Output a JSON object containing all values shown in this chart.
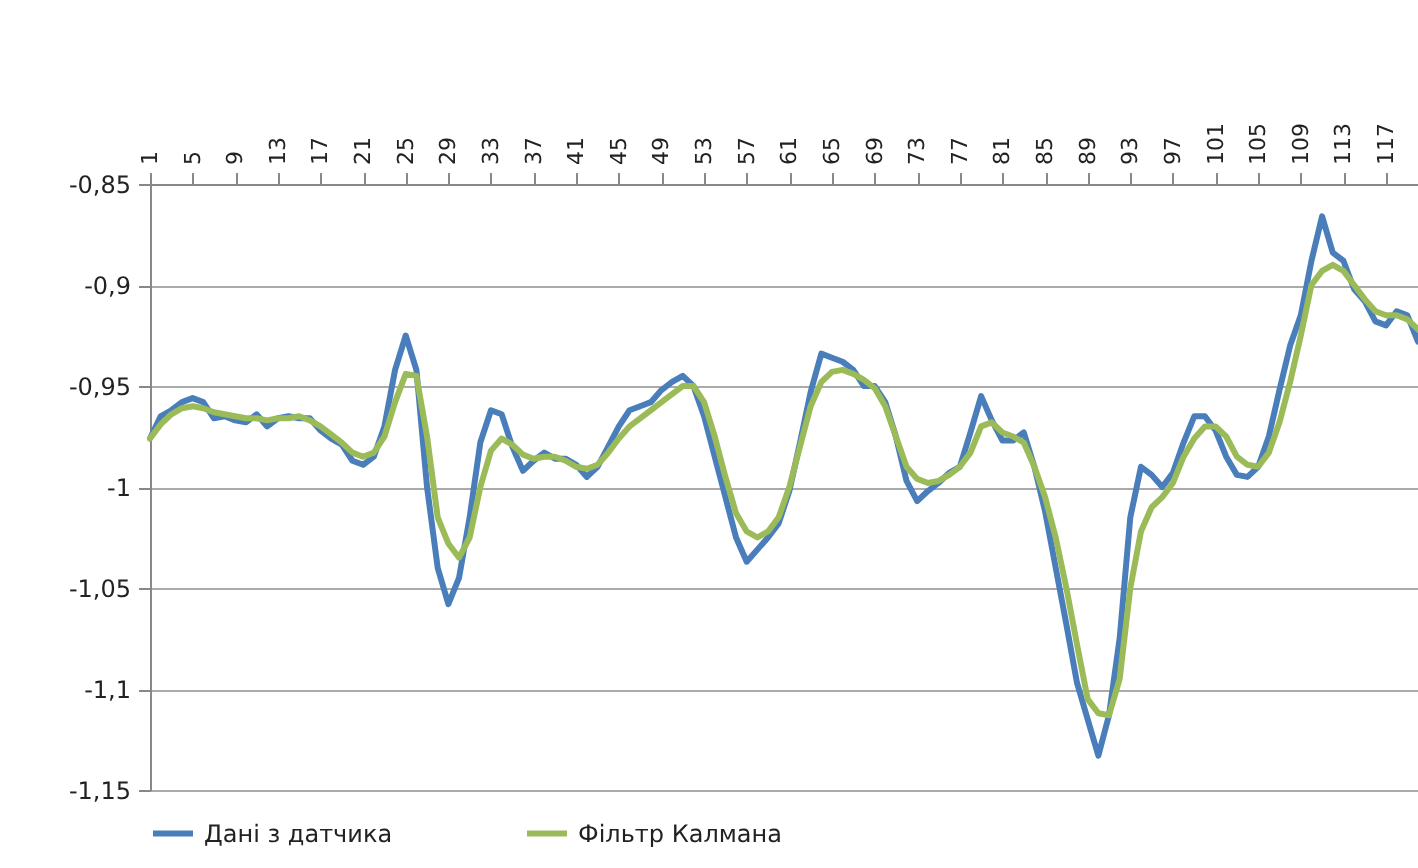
{
  "chart_data": {
    "type": "line",
    "categories": [
      "1",
      null,
      null,
      null,
      "5",
      null,
      null,
      null,
      "9",
      null,
      null,
      null,
      "13",
      null,
      null,
      null,
      "17",
      null,
      null,
      null,
      "21",
      null,
      null,
      null,
      "25",
      null,
      null,
      null,
      "29",
      null,
      null,
      null,
      "33",
      null,
      null,
      null,
      "37",
      null,
      null,
      null,
      "41",
      null,
      null,
      null,
      "45",
      null,
      null,
      null,
      "49",
      null,
      null,
      null,
      "53",
      null,
      null,
      null,
      "57",
      null,
      null,
      null,
      "61",
      null,
      null,
      null,
      "65",
      null,
      null,
      null,
      "69",
      null,
      null,
      null,
      "73",
      null,
      null,
      null,
      "77",
      null,
      null,
      null,
      "81",
      null,
      null,
      null,
      "85",
      null,
      null,
      null,
      "89",
      null,
      null,
      null,
      "93",
      null,
      null,
      null,
      "97",
      null,
      null,
      null,
      "101",
      null,
      null,
      null,
      "105",
      null,
      null,
      null,
      "109",
      null,
      null,
      null,
      "113",
      null,
      null,
      null,
      "117",
      null,
      null,
      null
    ],
    "series": [
      {
        "name": "Дані з датчика",
        "color": "#4a7ebb",
        "values": [
          -0.976,
          -0.965,
          -0.962,
          -0.958,
          -0.956,
          -0.958,
          -0.966,
          -0.965,
          -0.967,
          -0.968,
          -0.964,
          -0.97,
          -0.966,
          -0.965,
          -0.966,
          -0.966,
          -0.972,
          -0.976,
          -0.979,
          -0.987,
          -0.989,
          -0.985,
          -0.97,
          -0.942,
          -0.925,
          -0.942,
          -1.0,
          -1.04,
          -1.058,
          -1.045,
          -1.015,
          -0.978,
          -0.962,
          -0.964,
          -0.98,
          -0.992,
          -0.987,
          -0.983,
          -0.986,
          -0.986,
          -0.989,
          -0.995,
          -0.99,
          -0.98,
          -0.97,
          -0.962,
          -0.96,
          -0.958,
          -0.952,
          -0.948,
          -0.945,
          -0.95,
          -0.965,
          -0.985,
          -1.005,
          -1.025,
          -1.037,
          -1.031,
          -1.025,
          -1.018,
          -1.002,
          -0.978,
          -0.953,
          -0.934,
          -0.936,
          -0.938,
          -0.942,
          -0.95,
          -0.95,
          -0.958,
          -0.975,
          -0.997,
          -1.007,
          -1.002,
          -0.998,
          -0.993,
          -0.99,
          -0.973,
          -0.955,
          -0.967,
          -0.977,
          -0.977,
          -0.973,
          -0.99,
          -1.012,
          -1.04,
          -1.068,
          -1.097,
          -1.115,
          -1.133,
          -1.113,
          -1.075,
          -1.015,
          -0.99,
          -0.994,
          -1.0,
          -0.993,
          -0.978,
          -0.965,
          -0.965,
          -0.972,
          -0.985,
          -0.994,
          -0.995,
          -0.99,
          -0.975,
          -0.952,
          -0.93,
          -0.915,
          -0.888,
          -0.866,
          -0.884,
          -0.888,
          -0.902,
          -0.908,
          -0.918,
          -0.92,
          -0.913,
          -0.915,
          -0.928
        ]
      },
      {
        "name": "Фільтр Калмана",
        "color": "#9bbb59",
        "values": [
          -0.976,
          -0.969,
          -0.964,
          -0.961,
          -0.96,
          -0.961,
          -0.963,
          -0.964,
          -0.965,
          -0.966,
          -0.966,
          -0.967,
          -0.966,
          -0.966,
          -0.965,
          -0.967,
          -0.97,
          -0.974,
          -0.978,
          -0.983,
          -0.985,
          -0.983,
          -0.975,
          -0.958,
          -0.944,
          -0.945,
          -0.975,
          -1.015,
          -1.028,
          -1.035,
          -1.025,
          -1.0,
          -0.982,
          -0.976,
          -0.979,
          -0.984,
          -0.986,
          -0.985,
          -0.985,
          -0.987,
          -0.99,
          -0.991,
          -0.989,
          -0.983,
          -0.976,
          -0.97,
          -0.966,
          -0.962,
          -0.958,
          -0.954,
          -0.95,
          -0.95,
          -0.958,
          -0.975,
          -0.995,
          -1.013,
          -1.022,
          -1.025,
          -1.022,
          -1.015,
          -1.0,
          -0.98,
          -0.96,
          -0.948,
          -0.943,
          -0.942,
          -0.944,
          -0.947,
          -0.951,
          -0.96,
          -0.975,
          -0.99,
          -0.996,
          -0.998,
          -0.997,
          -0.994,
          -0.99,
          -0.983,
          -0.97,
          -0.968,
          -0.973,
          -0.975,
          -0.978,
          -0.99,
          -1.005,
          -1.025,
          -1.05,
          -1.078,
          -1.105,
          -1.112,
          -1.113,
          -1.095,
          -1.05,
          -1.022,
          -1.01,
          -1.005,
          -0.998,
          -0.985,
          -0.976,
          -0.97,
          -0.97,
          -0.975,
          -0.985,
          -0.989,
          -0.99,
          -0.983,
          -0.968,
          -0.948,
          -0.925,
          -0.9,
          -0.893,
          -0.89,
          -0.893,
          -0.9,
          -0.907,
          -0.913,
          -0.915,
          -0.915,
          -0.917,
          -0.922
        ]
      }
    ],
    "ylim": [
      -1.15,
      -0.85
    ],
    "yticks": [
      {
        "value": -1.15,
        "label": "-1,15"
      },
      {
        "value": -1.1,
        "label": "-1,1"
      },
      {
        "value": -1.05,
        "label": "-1,05"
      },
      -1,
      {
        "value": -0.95,
        "label": "-0,95"
      },
      {
        "value": -0.9,
        "label": "-0,9"
      },
      {
        "value": -0.85,
        "label": "-0,85"
      }
    ],
    "grid": "y",
    "legend": "bottom",
    "line_style": "solid",
    "marker": "none"
  }
}
